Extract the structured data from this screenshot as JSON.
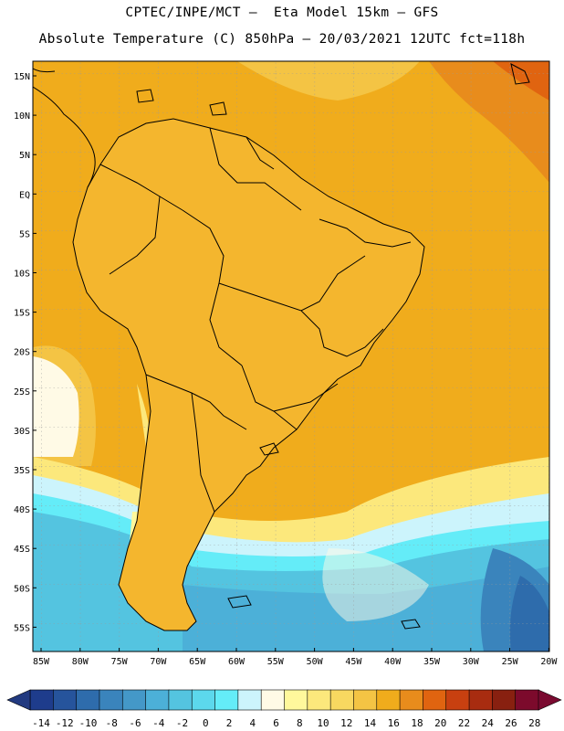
{
  "header": {
    "line1": "CPTEC/INPE/MCT —  Eta Model 15km — GFS",
    "line2": "Absolute Temperature (C) 850hPa — 20/03/2021 12UTC fct=118h"
  },
  "axes": {
    "lat_labels": [
      "15N",
      "10N",
      "5N",
      "EQ",
      "5S",
      "10S",
      "15S",
      "20S",
      "25S",
      "30S",
      "35S",
      "40S",
      "45S",
      "50S",
      "55S"
    ],
    "lon_labels": [
      "85W",
      "80W",
      "75W",
      "70W",
      "65W",
      "60W",
      "55W",
      "50W",
      "45W",
      "40W",
      "35W",
      "30W",
      "25W",
      "20W"
    ]
  },
  "colorbar": {
    "labels": [
      "-14",
      "-12",
      "-10",
      "-8",
      "-6",
      "-4",
      "-2",
      "0",
      "2",
      "4",
      "6",
      "8",
      "10",
      "12",
      "14",
      "16",
      "18",
      "20",
      "22",
      "24",
      "26",
      "28"
    ],
    "colors": [
      "#1e3c8c",
      "#26549c",
      "#2e6cac",
      "#3a84bc",
      "#4498c8",
      "#4cb0d8",
      "#54c4e0",
      "#5cd8ec",
      "#64ecf8",
      "#ccf4fc",
      "#fffae6",
      "#fff89c",
      "#fce87c",
      "#f8d860",
      "#f4c444",
      "#f0ac1c",
      "#e88c1c",
      "#e06410",
      "#c84010",
      "#a82c10",
      "#882010",
      "#7c0a2c"
    ]
  },
  "map": {
    "ocean_color": "#f0ac1c",
    "land_color": "#f4b62e",
    "warm_core_color": "#e0741c",
    "hot_core_color": "#c8541c",
    "cool_color": "#fff89c",
    "cold_color": "#54c4e0",
    "very_cold_color": "#2e6cac",
    "border_color": "#000000"
  }
}
